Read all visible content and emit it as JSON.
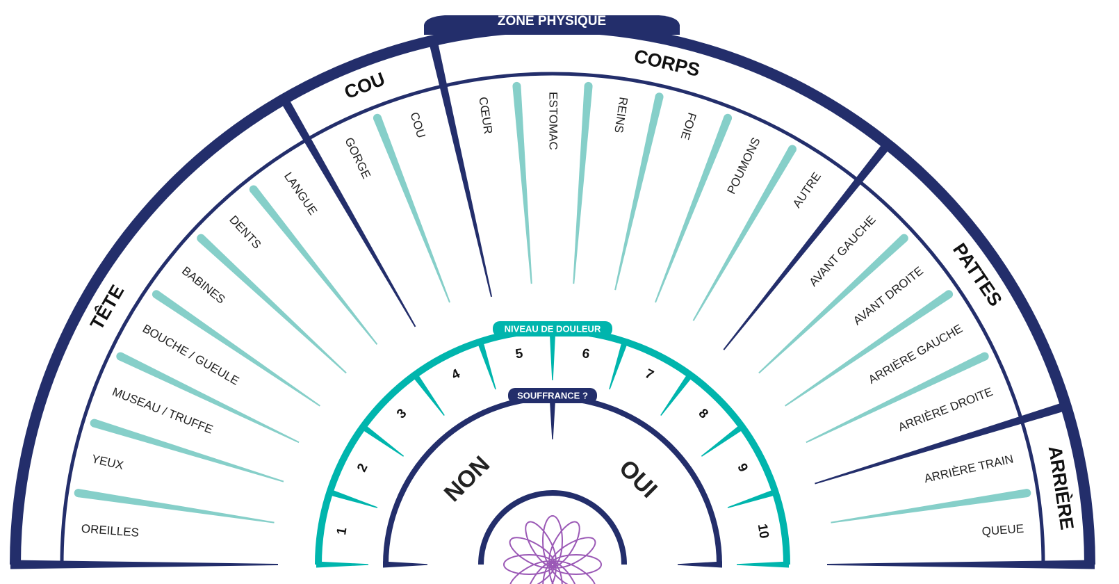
{
  "zone_title": "ZONE PHYSIQUE",
  "sections": [
    {
      "label": "TÊTE",
      "items": [
        "OREILLES",
        "YEUX",
        "MUSEAU / TRUFFE",
        "BOUCHE / GUEULE",
        "BABINES",
        "DENTS",
        "LANGUE"
      ]
    },
    {
      "label": "COU",
      "items": [
        "GORGE",
        "COU"
      ]
    },
    {
      "label": "CORPS",
      "items": [
        "CŒUR",
        "ESTOMAC",
        "REINS",
        "FOIE",
        "POUMONS",
        "AUTRE"
      ]
    },
    {
      "label": "PATTES",
      "items": [
        "AVANT GAUCHE",
        "AVANT DROITE",
        "ARRIÈRE GAUCHE",
        "ARRIÈRE DROITE"
      ]
    },
    {
      "label": "ARRIÈRE",
      "items": [
        "ARRIÈRE TRAIN",
        "QUEUE"
      ]
    }
  ],
  "pain_scale": {
    "title": "NIVEAU DE DOULEUR",
    "levels": [
      1,
      2,
      3,
      4,
      5,
      6,
      7,
      8,
      9,
      10
    ]
  },
  "suffering": {
    "title": "SOUFFRANCE ?",
    "options": [
      "NON",
      "OUI"
    ]
  }
}
